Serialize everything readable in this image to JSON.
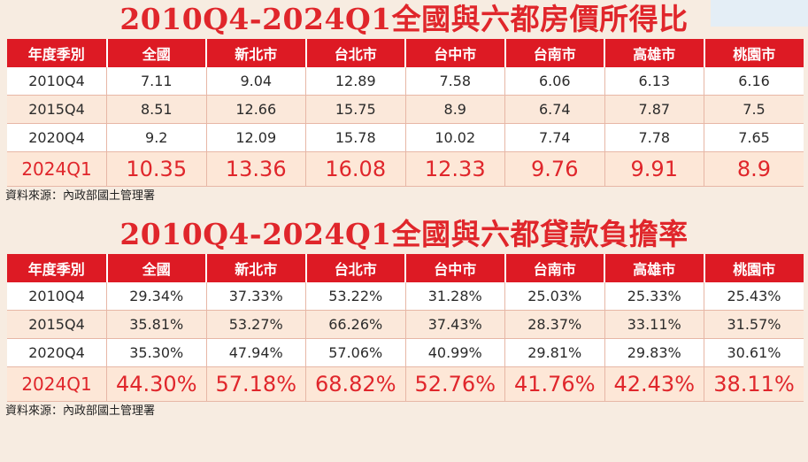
{
  "columns": [
    "年度季別",
    "全國",
    "新北市",
    "台北市",
    "台中市",
    "台南市",
    "高雄市",
    "桃園市"
  ],
  "source": "資料來源：內政部國土管理署",
  "chart_data": [
    {
      "type": "table",
      "title": "2010Q4-2024Q1全國與六都房價所得比",
      "rows": [
        [
          "2010Q4",
          "7.11",
          "9.04",
          "12.89",
          "7.58",
          "6.06",
          "6.13",
          "6.16"
        ],
        [
          "2015Q4",
          "8.51",
          "12.66",
          "15.75",
          "8.9",
          "6.74",
          "7.87",
          "7.5"
        ],
        [
          "2020Q4",
          "9.2",
          "12.09",
          "15.78",
          "10.02",
          "7.74",
          "7.78",
          "7.65"
        ],
        [
          "2024Q1",
          "10.35",
          "13.36",
          "16.08",
          "12.33",
          "9.76",
          "9.91",
          "8.9"
        ]
      ]
    },
    {
      "type": "table",
      "title": "2010Q4-2024Q1全國與六都貸款負擔率",
      "rows": [
        [
          "2010Q4",
          "29.34%",
          "37.33%",
          "53.22%",
          "31.28%",
          "25.03%",
          "25.33%",
          "25.43%"
        ],
        [
          "2015Q4",
          "35.81%",
          "53.27%",
          "66.26%",
          "37.43%",
          "28.37%",
          "33.11%",
          "31.57%"
        ],
        [
          "2020Q4",
          "35.30%",
          "47.94%",
          "57.06%",
          "40.99%",
          "29.81%",
          "29.83%",
          "30.61%"
        ],
        [
          "2024Q1",
          "44.30%",
          "57.18%",
          "68.82%",
          "52.76%",
          "41.76%",
          "42.43%",
          "38.11%"
        ]
      ]
    }
  ]
}
